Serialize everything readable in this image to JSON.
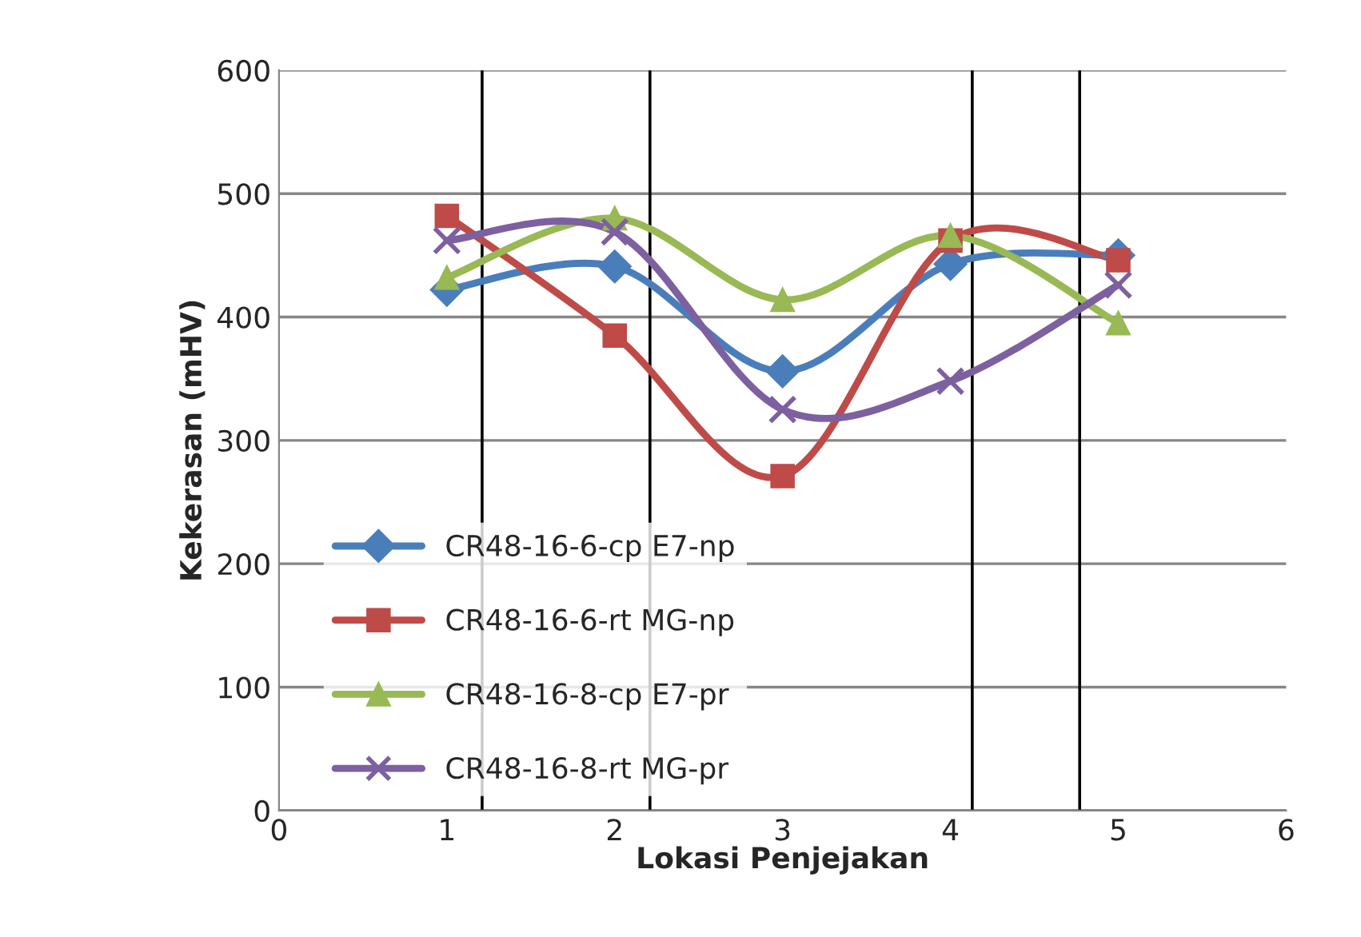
{
  "chart_data": {
    "type": "line",
    "xlabel": "Lokasi Penjejakan",
    "ylabel": "Kekerasan (mHV)",
    "x": [
      1,
      2,
      3,
      4,
      5
    ],
    "series": [
      {
        "name": "CR48-16-6-cp E7-np",
        "color": "#4a7ebb",
        "marker": "diamond",
        "values": [
          422,
          441,
          356,
          443,
          450
        ]
      },
      {
        "name": "CR48-16-6-rt MG-np",
        "color": "#be4b48",
        "marker": "square",
        "values": [
          482,
          385,
          271,
          462,
          446
        ]
      },
      {
        "name": "CR48-16-8-cp E7-pr",
        "color": "#98b954",
        "marker": "triangle",
        "values": [
          432,
          480,
          414,
          466,
          395
        ]
      },
      {
        "name": "CR48-16-8-rt MG-pr",
        "color": "#7d60a0",
        "marker": "cross",
        "values": [
          462,
          469,
          325,
          348,
          426
        ]
      }
    ],
    "xlim": [
      0,
      6
    ],
    "xticks": [
      0,
      1,
      2,
      3,
      4,
      5,
      6
    ],
    "ylim": [
      0,
      600
    ],
    "yticks": [
      0,
      100,
      200,
      300,
      400,
      500,
      600
    ],
    "grid": "y",
    "legend": "bottom left",
    "line_style": "solid",
    "ref_lines": [
      {
        "axis": "x",
        "value": 1.21,
        "color": "#000000"
      },
      {
        "axis": "x",
        "value": 2.21,
        "color": "#000000"
      },
      {
        "axis": "x",
        "value": 4.13,
        "color": "#000000"
      },
      {
        "axis": "x",
        "value": 4.77,
        "color": "#000000"
      }
    ]
  }
}
